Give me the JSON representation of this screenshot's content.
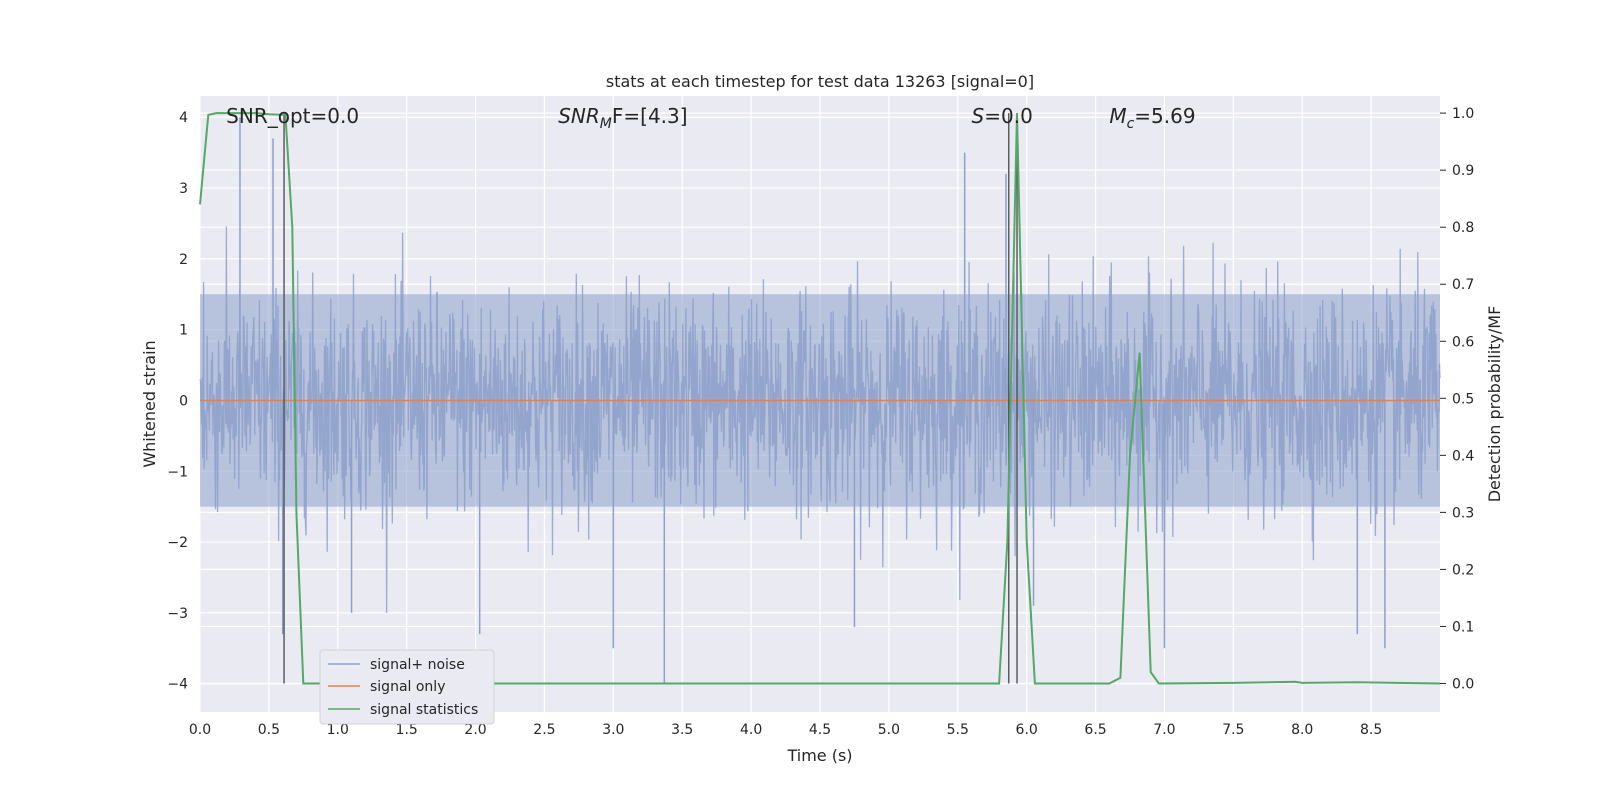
{
  "chart_data": {
    "type": "line",
    "title": "stats at each timestep for test data 13263 [signal=0]",
    "xlabel": "Time (s)",
    "ylabel_left": "Whitened strain",
    "ylabel_right": "Detection probability/MF",
    "xlim": [
      0.0,
      9.0
    ],
    "ylim_left": [
      -4.4,
      4.3
    ],
    "ylim_right": [
      -0.05,
      1.03
    ],
    "x_ticks": [
      "0.0",
      "0.5",
      "1.0",
      "1.5",
      "2.0",
      "2.5",
      "3.0",
      "3.5",
      "4.0",
      "4.5",
      "5.0",
      "5.5",
      "6.0",
      "6.5",
      "7.0",
      "7.5",
      "8.0",
      "8.5"
    ],
    "x_tick_values": [
      0.0,
      0.5,
      1.0,
      1.5,
      2.0,
      2.5,
      3.0,
      3.5,
      4.0,
      4.5,
      5.0,
      5.5,
      6.0,
      6.5,
      7.0,
      7.5,
      8.0,
      8.5
    ],
    "y_ticks_left": [
      "−4",
      "−3",
      "−2",
      "−1",
      "0",
      "1",
      "2",
      "3",
      "4"
    ],
    "y_tick_values_left": [
      -4,
      -3,
      -2,
      -1,
      0,
      1,
      2,
      3,
      4
    ],
    "y_ticks_right": [
      "0.0",
      "0.1",
      "0.2",
      "0.3",
      "0.4",
      "0.5",
      "0.6",
      "0.7",
      "0.8",
      "0.9",
      "1.0"
    ],
    "y_tick_values_right": [
      0.0,
      0.1,
      0.2,
      0.3,
      0.4,
      0.5,
      0.6,
      0.7,
      0.8,
      0.9,
      1.0
    ],
    "grid": true,
    "legend_position": "lower-left",
    "series": [
      {
        "name": "signal+ noise",
        "axis": "left",
        "color": "#8da0cb",
        "description_values": "dense noise trace, bulk roughly within ±1.5, peaks near ±3.5",
        "envelope_core": 1.5,
        "peaks": [
          [
            0.29,
            4.0
          ],
          [
            0.53,
            3.7
          ],
          [
            0.6,
            -3.3
          ],
          [
            1.1,
            -3.0
          ],
          [
            2.03,
            -3.3
          ],
          [
            3.0,
            -3.5
          ],
          [
            3.37,
            -4.0
          ],
          [
            4.75,
            -3.2
          ],
          [
            5.55,
            3.5
          ],
          [
            5.85,
            3.2
          ],
          [
            6.05,
            -2.9
          ],
          [
            7.0,
            -3.5
          ],
          [
            8.4,
            -3.3
          ],
          [
            8.6,
            -3.5
          ]
        ]
      },
      {
        "name": "signal only",
        "axis": "left",
        "color": "#dd8452",
        "x": [
          0.0,
          9.0
        ],
        "y": [
          0.0,
          0.0
        ]
      },
      {
        "name": "signal statistics",
        "axis": "right",
        "color": "#55a868",
        "x": [
          0.0,
          0.06,
          0.12,
          0.2,
          0.3,
          0.4,
          0.5,
          0.6,
          0.62,
          0.67,
          0.7,
          0.75,
          0.8,
          5.8,
          5.86,
          5.93,
          6.0,
          6.06,
          6.6,
          6.68,
          6.75,
          6.82,
          6.9,
          6.96,
          7.5,
          7.95,
          8.0,
          8.4,
          9.0
        ],
        "y": [
          0.84,
          0.997,
          1.0,
          1.0,
          1.0,
          1.0,
          0.998,
          0.997,
          0.998,
          0.8,
          0.3,
          0.0,
          0.0,
          0.0,
          0.25,
          1.0,
          0.25,
          0.0,
          0.0,
          0.01,
          0.4,
          0.58,
          0.02,
          0.0,
          0.001,
          0.003,
          0.001,
          0.002,
          0.0
        ]
      }
    ],
    "vlines": [
      {
        "x": 0.61,
        "color": "#555555"
      },
      {
        "x": 5.87,
        "color": "#555555"
      },
      {
        "x": 5.93,
        "color": "#555555"
      }
    ],
    "annotations": [
      {
        "text": "SNR_opt=0.0",
        "x": 0.19
      },
      {
        "text": "SNR",
        "sub": "M",
        "tail": "F=[4.3]",
        "italic": true,
        "x": 2.6
      },
      {
        "text": "S",
        "tail": "=0.0",
        "italic": true,
        "x": 5.6
      },
      {
        "text": "M",
        "sub": "c",
        "tail": "=5.69",
        "italic": true,
        "x": 6.6
      }
    ],
    "legend": [
      "signal+ noise",
      "signal only",
      "signal statistics"
    ]
  }
}
